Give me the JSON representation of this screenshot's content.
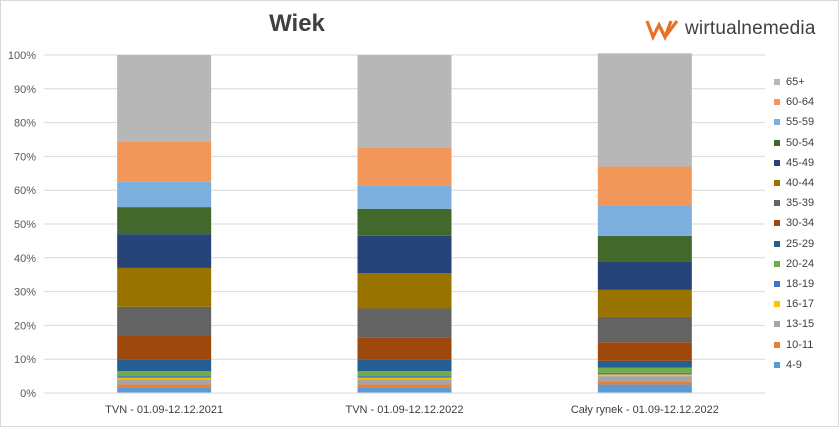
{
  "chart_data": {
    "type": "bar",
    "stacked": true,
    "title": "Wiek",
    "categories": [
      "TVN - 01.09-12.12.2021",
      "TVN - 01.09-12.12.2022",
      "Cały rynek - 01.09-12.12.2022"
    ],
    "ylim": [
      0,
      100
    ],
    "yticks": [
      "0%",
      "10%",
      "20%",
      "30%",
      "40%",
      "50%",
      "60%",
      "70%",
      "80%",
      "90%",
      "100%"
    ],
    "series": [
      {
        "name": "4-9",
        "color": "#5b9bd5",
        "values": [
          1.5,
          1.5,
          2.5
        ]
      },
      {
        "name": "10-11",
        "color": "#ed7d31",
        "values": [
          1.0,
          1.0,
          1.0
        ]
      },
      {
        "name": "13-15",
        "color": "#a5a5a5",
        "values": [
          1.5,
          1.5,
          1.5
        ]
      },
      {
        "name": "16-17",
        "color": "#ffc000",
        "values": [
          0.5,
          0.5,
          0.5
        ]
      },
      {
        "name": "18-19",
        "color": "#4472c4",
        "values": [
          0.5,
          0.5,
          0.5
        ]
      },
      {
        "name": "20-24",
        "color": "#70ad47",
        "values": [
          1.5,
          1.5,
          1.5
        ]
      },
      {
        "name": "25-29",
        "color": "#255e91",
        "values": [
          3.5,
          3.5,
          2.0
        ]
      },
      {
        "name": "30-34",
        "color": "#9e480e",
        "values": [
          7.0,
          6.5,
          5.5
        ]
      },
      {
        "name": "35-39",
        "color": "#636363",
        "values": [
          8.5,
          8.5,
          7.5
        ]
      },
      {
        "name": "40-44",
        "color": "#997300",
        "values": [
          11.5,
          10.5,
          8.0
        ]
      },
      {
        "name": "45-49",
        "color": "#264478",
        "values": [
          10.0,
          11.0,
          8.5
        ]
      },
      {
        "name": "50-54",
        "color": "#43682b",
        "values": [
          8.0,
          8.0,
          7.5
        ]
      },
      {
        "name": "55-59",
        "color": "#7cafdd",
        "values": [
          7.5,
          7.0,
          9.0
        ]
      },
      {
        "name": "60-64",
        "color": "#f1975a",
        "values": [
          12.0,
          11.0,
          11.5
        ]
      },
      {
        "name": "65+",
        "color": "#b7b7b7",
        "values": [
          25.5,
          27.5,
          33.5
        ]
      }
    ],
    "legend_position": "right",
    "grid": true
  },
  "logo": {
    "text": "wirtualnemedia",
    "icon": "wm-logo-icon",
    "color": "#e8702a"
  }
}
